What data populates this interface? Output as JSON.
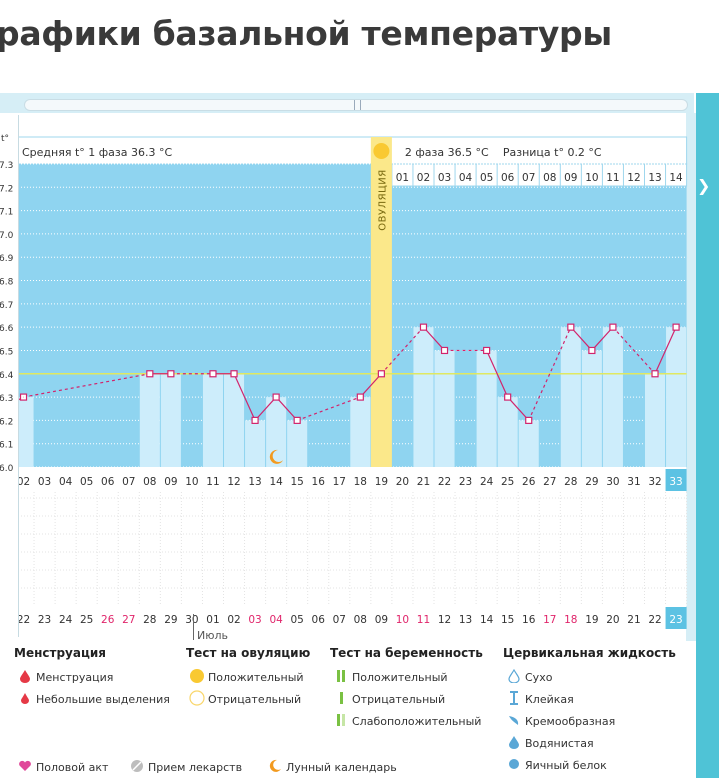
{
  "page": {
    "title": "рафики базальной температуры"
  },
  "header": {
    "phase1": "Средняя t° 1 фаза 36.3 °C",
    "phase2": "2 фаза 36.5 °C",
    "diff": "Разница t° 0.2 °C",
    "ovulation": "ОВУЛЯЦИЯ",
    "unit": "t°"
  },
  "chart_data": {
    "type": "line",
    "y_ticks": [
      "6.0",
      "6.1",
      "6.2",
      "6.3",
      "6.4",
      "6.5",
      "6.6",
      "6.7",
      "6.8",
      "6.9",
      "7.0",
      "7.1",
      "7.2",
      "7.3"
    ],
    "ylim": [
      36.0,
      37.3
    ],
    "cycle_days": [
      "02",
      "03",
      "04",
      "05",
      "06",
      "07",
      "08",
      "09",
      "10",
      "11",
      "12",
      "13",
      "14",
      "15",
      "16",
      "17",
      "18",
      "19",
      "20",
      "21",
      "22",
      "23",
      "24",
      "25",
      "26",
      "27",
      "28",
      "29",
      "30",
      "31",
      "32",
      "33"
    ],
    "dates": [
      "22",
      "23",
      "24",
      "25",
      "26",
      "27",
      "28",
      "29",
      "30",
      "01",
      "02",
      "03",
      "04",
      "05",
      "06",
      "07",
      "08",
      "09",
      "10",
      "11",
      "12",
      "13",
      "14",
      "15",
      "16",
      "17",
      "18",
      "19",
      "20",
      "21",
      "22",
      "23"
    ],
    "date_red_indices": [
      4,
      5,
      11,
      12,
      18,
      19,
      25,
      26
    ],
    "month_label": "Июль",
    "phase2_days": [
      "01",
      "02",
      "03",
      "04",
      "05",
      "06",
      "07",
      "08",
      "09",
      "10",
      "11",
      "12",
      "13",
      "14"
    ],
    "temperatures": [
      36.3,
      null,
      null,
      null,
      null,
      null,
      36.4,
      36.4,
      null,
      36.4,
      36.4,
      36.2,
      36.3,
      36.2,
      null,
      null,
      36.3,
      36.4,
      null,
      36.6,
      36.5,
      null,
      36.5,
      36.3,
      36.2,
      null,
      36.6,
      36.5,
      36.6,
      null,
      36.4,
      36.6
    ],
    "coverline": 36.4,
    "ovulation_index": 17,
    "moon_index": 12,
    "highlight_index": 31
  },
  "legend": {
    "menstruation": {
      "title": "Менструация",
      "items": [
        "Менструация",
        "Небольшие выделения"
      ]
    },
    "ovulation_test": {
      "title": "Тест на овуляцию",
      "items": [
        "Положительный",
        "Отрицательный"
      ]
    },
    "pregnancy_test": {
      "title": "Тест на беременность",
      "items": [
        "Положительный",
        "Отрицательный",
        "Слабоположительный"
      ]
    },
    "cervical": {
      "title": "Цервикальная жидкость",
      "items": [
        "Сухо",
        "Клейкая",
        "Кремообразная",
        "Водянистая",
        "Яичный белок"
      ]
    },
    "bottom": [
      "Половой акт",
      "Прием лекарств",
      "Лунный календарь"
    ]
  },
  "colors": {
    "sky": "#8fd4f0",
    "bar": "#cdedfb",
    "line": "#d2246c",
    "ovulation": "#fbe88a",
    "coverline": "#e0e860",
    "accent": "#4fc3d6"
  }
}
